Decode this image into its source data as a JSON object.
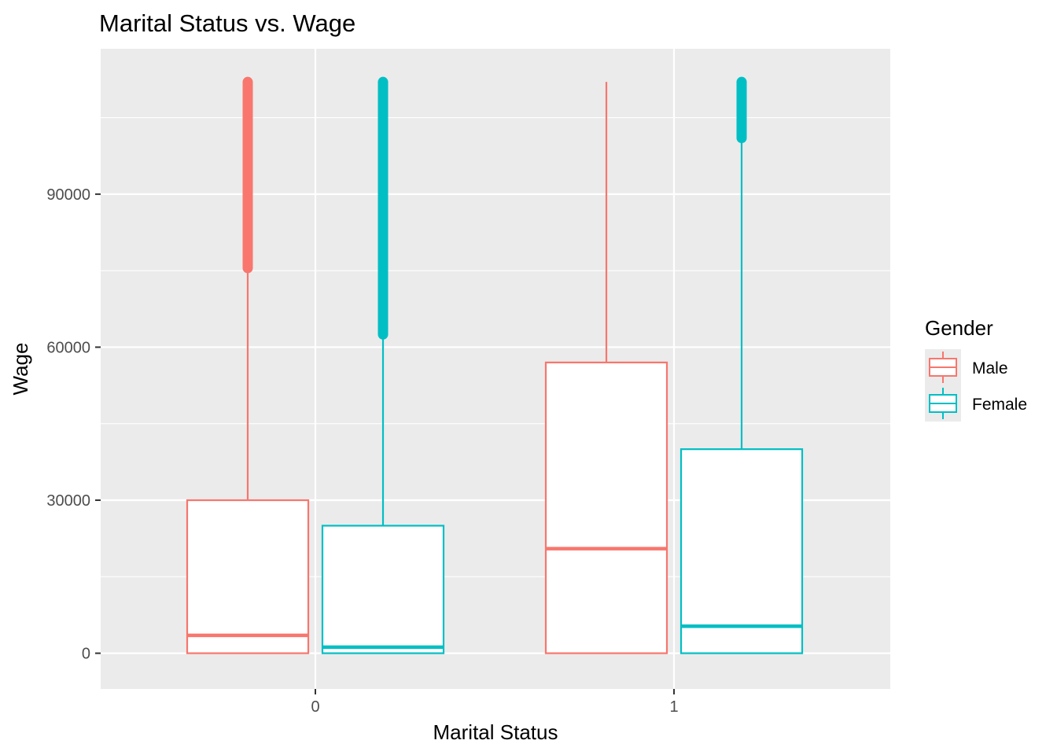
{
  "chart_data": {
    "type": "boxplot",
    "title": "Marital Status vs. Wage",
    "xlabel": "Marital Status",
    "ylabel": "Wage",
    "categories": [
      "0",
      "1"
    ],
    "ylim": [
      -7000,
      118500
    ],
    "yticks": [
      0,
      30000,
      60000,
      90000
    ],
    "ytick_labels": [
      "0",
      "30000",
      "60000",
      "90000"
    ],
    "grid": true,
    "legend": {
      "title": "Gender",
      "position": "right",
      "entries": [
        "Male",
        "Female"
      ]
    },
    "colors": {
      "Male": "#F8766D",
      "Female": "#00BFC4",
      "panel": "#EBEBEB",
      "grid": "#FFFFFF"
    },
    "series": [
      {
        "name": "Male",
        "boxes": [
          {
            "category": "0",
            "lower_whisker": 0,
            "q1": 0,
            "median": 3500,
            "q3": 30000,
            "upper_whisker": 75500,
            "outlier_range": [
              75500,
              112000
            ]
          },
          {
            "category": "1",
            "lower_whisker": 0,
            "q1": 0,
            "median": 20500,
            "q3": 57000,
            "upper_whisker": 112000,
            "outlier_range": null
          }
        ]
      },
      {
        "name": "Female",
        "boxes": [
          {
            "category": "0",
            "lower_whisker": 0,
            "q1": 0,
            "median": 1200,
            "q3": 25000,
            "upper_whisker": 62500,
            "outlier_range": [
              62500,
              112000
            ]
          },
          {
            "category": "1",
            "lower_whisker": 0,
            "q1": 0,
            "median": 5300,
            "q3": 40000,
            "upper_whisker": 101000,
            "outlier_range": [
              101000,
              112000
            ]
          }
        ]
      }
    ]
  }
}
